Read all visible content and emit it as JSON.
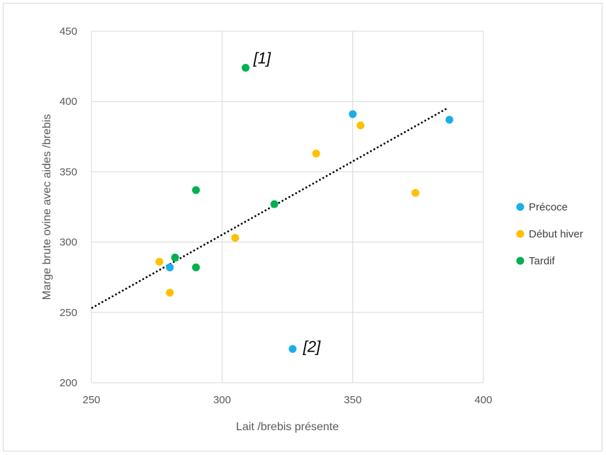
{
  "chart_data": {
    "type": "scatter",
    "xlabel": "Lait /brebis présente",
    "ylabel": "Marge brute ovine avec aides /brebis",
    "xlim": [
      250,
      400
    ],
    "ylim": [
      200,
      450
    ],
    "x_ticks": [
      "250",
      "300",
      "350",
      "400"
    ],
    "y_ticks": [
      "200",
      "250",
      "300",
      "350",
      "400",
      "450"
    ],
    "grid": true,
    "legend_position": "right",
    "series": [
      {
        "name": "Précoce",
        "color": "#1aaee8",
        "points": [
          [
            280,
            282
          ],
          [
            350,
            391
          ],
          [
            387,
            387
          ],
          [
            327,
            224
          ]
        ]
      },
      {
        "name": "Début hiver",
        "color": "#ffc000",
        "points": [
          [
            276,
            286
          ],
          [
            280,
            264
          ],
          [
            305,
            303
          ],
          [
            336,
            363
          ],
          [
            353,
            383
          ],
          [
            374,
            335
          ]
        ]
      },
      {
        "name": "Tardif",
        "color": "#00b050",
        "points": [
          [
            282,
            289
          ],
          [
            290,
            282
          ],
          [
            290,
            337
          ],
          [
            309,
            424
          ],
          [
            320,
            327
          ]
        ]
      }
    ],
    "trendline": {
      "style": "dotted",
      "color": "#000000",
      "from": [
        250,
        253
      ],
      "to": [
        386,
        395
      ]
    },
    "annotations": [
      {
        "text": "[1]",
        "x": 312,
        "y": 427
      },
      {
        "text": "[2]",
        "x": 331,
        "y": 222
      }
    ]
  }
}
